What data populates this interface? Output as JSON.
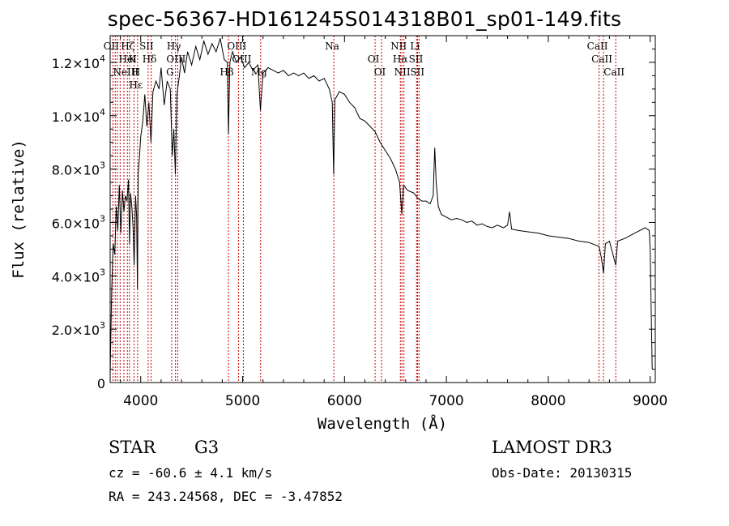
{
  "title": "spec-56367-HD161245S014318B01_sp01-149.fits",
  "chart_data": {
    "type": "line",
    "xlabel": "Wavelength (Å)",
    "ylabel": "Flux (relative)",
    "xlim": [
      3700,
      9050
    ],
    "ylim": [
      0,
      13000
    ],
    "xticks": [
      {
        "value": 4000,
        "label": "4000"
      },
      {
        "value": 5000,
        "label": "5000"
      },
      {
        "value": 6000,
        "label": "6000"
      },
      {
        "value": 7000,
        "label": "7000"
      },
      {
        "value": 8000,
        "label": "8000"
      },
      {
        "value": 9000,
        "label": "9000"
      }
    ],
    "yticks": [
      {
        "value": 0,
        "mant": "0",
        "exp": ""
      },
      {
        "value": 2000,
        "mant": "2.0×10",
        "exp": "3"
      },
      {
        "value": 4000,
        "mant": "4.0×10",
        "exp": "3"
      },
      {
        "value": 6000,
        "mant": "6.0×10",
        "exp": "3"
      },
      {
        "value": 8000,
        "mant": "8.0×10",
        "exp": "3"
      },
      {
        "value": 10000,
        "mant": "1.0×10",
        "exp": "4"
      },
      {
        "value": 12000,
        "mant": "1.2×10",
        "exp": "4"
      }
    ],
    "grid": false,
    "series": [
      {
        "points": [
          [
            3700,
            300
          ],
          [
            3715,
            3500
          ],
          [
            3730,
            5200
          ],
          [
            3745,
            4800
          ],
          [
            3760,
            6600
          ],
          [
            3775,
            5700
          ],
          [
            3790,
            7400
          ],
          [
            3805,
            5600
          ],
          [
            3820,
            7200
          ],
          [
            3835,
            6400
          ],
          [
            3850,
            7000
          ],
          [
            3865,
            6800
          ],
          [
            3880,
            7600
          ],
          [
            3890,
            5200
          ],
          [
            3900,
            7100
          ],
          [
            3915,
            6500
          ],
          [
            3925,
            5800
          ],
          [
            3935,
            4400
          ],
          [
            3950,
            7000
          ],
          [
            3960,
            6200
          ],
          [
            3968,
            3500
          ],
          [
            3975,
            7800
          ],
          [
            3990,
            8600
          ],
          [
            4000,
            9200
          ],
          [
            4020,
            9800
          ],
          [
            4040,
            10800
          ],
          [
            4060,
            9600
          ],
          [
            4080,
            10500
          ],
          [
            4101,
            9000
          ],
          [
            4120,
            10900
          ],
          [
            4150,
            11300
          ],
          [
            4180,
            11000
          ],
          [
            4200,
            11800
          ],
          [
            4230,
            10400
          ],
          [
            4260,
            11300
          ],
          [
            4290,
            11000
          ],
          [
            4310,
            8500
          ],
          [
            4325,
            9500
          ],
          [
            4340,
            7800
          ],
          [
            4355,
            10800
          ],
          [
            4380,
            11500
          ],
          [
            4400,
            12200
          ],
          [
            4430,
            11600
          ],
          [
            4460,
            12400
          ],
          [
            4500,
            11900
          ],
          [
            4540,
            12600
          ],
          [
            4580,
            12100
          ],
          [
            4620,
            12800
          ],
          [
            4660,
            12300
          ],
          [
            4700,
            12700
          ],
          [
            4740,
            12400
          ],
          [
            4780,
            12900
          ],
          [
            4820,
            12100
          ],
          [
            4850,
            12000
          ],
          [
            4861,
            9300
          ],
          [
            4875,
            12000
          ],
          [
            4900,
            12400
          ],
          [
            4940,
            12000
          ],
          [
            4980,
            12200
          ],
          [
            5020,
            11800
          ],
          [
            5060,
            12000
          ],
          [
            5100,
            11700
          ],
          [
            5150,
            11900
          ],
          [
            5175,
            10200
          ],
          [
            5200,
            11600
          ],
          [
            5250,
            11800
          ],
          [
            5300,
            11700
          ],
          [
            5350,
            11600
          ],
          [
            5400,
            11700
          ],
          [
            5450,
            11500
          ],
          [
            5500,
            11600
          ],
          [
            5550,
            11500
          ],
          [
            5600,
            11600
          ],
          [
            5650,
            11400
          ],
          [
            5700,
            11500
          ],
          [
            5750,
            11300
          ],
          [
            5800,
            11400
          ],
          [
            5850,
            11000
          ],
          [
            5880,
            10500
          ],
          [
            5893,
            7800
          ],
          [
            5905,
            10600
          ],
          [
            5950,
            10900
          ],
          [
            6000,
            10800
          ],
          [
            6050,
            10500
          ],
          [
            6100,
            10300
          ],
          [
            6150,
            9900
          ],
          [
            6200,
            9800
          ],
          [
            6250,
            9600
          ],
          [
            6300,
            9400
          ],
          [
            6350,
            9000
          ],
          [
            6400,
            8700
          ],
          [
            6450,
            8400
          ],
          [
            6500,
            8000
          ],
          [
            6540,
            7500
          ],
          [
            6563,
            6300
          ],
          [
            6580,
            7400
          ],
          [
            6620,
            7200
          ],
          [
            6680,
            7100
          ],
          [
            6720,
            6900
          ],
          [
            6760,
            6800
          ],
          [
            6800,
            6800
          ],
          [
            6840,
            6700
          ],
          [
            6870,
            7000
          ],
          [
            6885,
            8800
          ],
          [
            6900,
            7500
          ],
          [
            6920,
            6600
          ],
          [
            6950,
            6300
          ],
          [
            7000,
            6200
          ],
          [
            7050,
            6100
          ],
          [
            7100,
            6150
          ],
          [
            7150,
            6100
          ],
          [
            7200,
            6000
          ],
          [
            7250,
            6050
          ],
          [
            7300,
            5900
          ],
          [
            7350,
            5950
          ],
          [
            7400,
            5850
          ],
          [
            7450,
            5800
          ],
          [
            7500,
            5900
          ],
          [
            7560,
            5800
          ],
          [
            7600,
            5900
          ],
          [
            7620,
            6400
          ],
          [
            7640,
            5750
          ],
          [
            7700,
            5700
          ],
          [
            7800,
            5650
          ],
          [
            7900,
            5600
          ],
          [
            8000,
            5500
          ],
          [
            8100,
            5450
          ],
          [
            8200,
            5400
          ],
          [
            8300,
            5300
          ],
          [
            8400,
            5250
          ],
          [
            8498,
            5100
          ],
          [
            8520,
            4700
          ],
          [
            8542,
            4100
          ],
          [
            8560,
            5200
          ],
          [
            8600,
            5300
          ],
          [
            8662,
            4400
          ],
          [
            8680,
            5300
          ],
          [
            8750,
            5400
          ],
          [
            8850,
            5600
          ],
          [
            8950,
            5800
          ],
          [
            8990,
            5700
          ],
          [
            9000,
            5000
          ],
          [
            9010,
            2600
          ],
          [
            9020,
            500
          ]
        ]
      }
    ],
    "lines": [
      {
        "x": 3727,
        "labels": [
          "OII"
        ]
      },
      {
        "x": 3750,
        "labels": [
          ""
        ]
      },
      {
        "x": 3771,
        "labels": [
          ""
        ]
      },
      {
        "x": 3798,
        "labels": [
          ""
        ]
      },
      {
        "x": 3835,
        "labels": [
          ""
        ]
      },
      {
        "x": 3869,
        "labels": [
          "NeIII"
        ]
      },
      {
        "x": 3889,
        "labels": [
          "Hζ",
          "HeI"
        ]
      },
      {
        "x": 3934,
        "labels": [
          "K"
        ]
      },
      {
        "x": 3969,
        "labels": [
          "H",
          "Hε"
        ]
      },
      {
        "x": 4073,
        "labels": [
          "SII"
        ]
      },
      {
        "x": 4102,
        "labels": [
          "Hδ"
        ]
      },
      {
        "x": 4304,
        "labels": [
          "G"
        ]
      },
      {
        "x": 4341,
        "labels": [
          "Hγ"
        ]
      },
      {
        "x": 4363,
        "labels": [
          "OIII"
        ]
      },
      {
        "x": 4861,
        "labels": [
          "Hβ"
        ]
      },
      {
        "x": 4959,
        "labels": [
          "OIII"
        ]
      },
      {
        "x": 5007,
        "labels": [
          "OIII"
        ]
      },
      {
        "x": 5177,
        "labels": [
          "Mg"
        ]
      },
      {
        "x": 5895,
        "labels": [
          "Na"
        ]
      },
      {
        "x": 6300,
        "labels": [
          "OI"
        ]
      },
      {
        "x": 6363,
        "labels": [
          "OI"
        ]
      },
      {
        "x": 6548,
        "labels": [
          "NII"
        ]
      },
      {
        "x": 6563,
        "labels": [
          "Hα"
        ]
      },
      {
        "x": 6583,
        "labels": [
          "NII"
        ]
      },
      {
        "x": 6707,
        "labels": [
          "Li"
        ]
      },
      {
        "x": 6717,
        "labels": [
          "SII"
        ]
      },
      {
        "x": 6731,
        "labels": [
          "SII"
        ]
      },
      {
        "x": 8498,
        "labels": [
          "CaII"
        ]
      },
      {
        "x": 8542,
        "labels": [
          "CaII"
        ]
      },
      {
        "x": 8662,
        "labels": [
          "CaII"
        ]
      }
    ],
    "line_color": "#cc0000"
  },
  "info": {
    "obj_class": "STAR",
    "subclass": "G3",
    "survey": "LAMOST DR3",
    "cz": "cz = -60.6 ± 4.1 km/s",
    "obs_date": "Obs-Date: 20130315",
    "radec": "RA = 243.24568, DEC =  -3.47852"
  }
}
